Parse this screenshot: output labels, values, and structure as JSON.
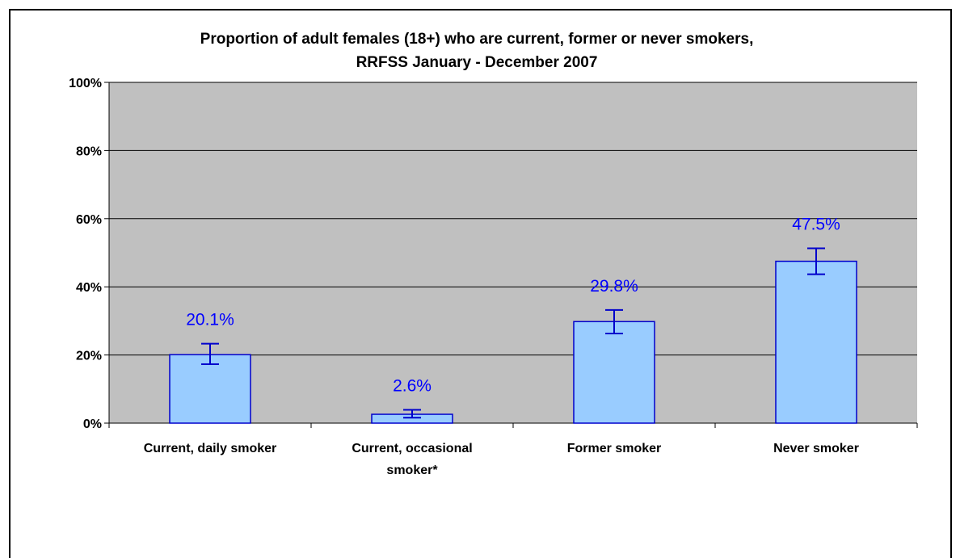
{
  "chart_data": {
    "type": "bar",
    "title_lines": [
      "Proportion of adult females (18+) who are current, former or never smokers,",
      "RRFSS January - December 2007"
    ],
    "categories": [
      [
        "Current, daily smoker"
      ],
      [
        "Current, occasional",
        "smoker*"
      ],
      [
        "Former smoker"
      ],
      [
        "Never smoker"
      ]
    ],
    "values": [
      20.1,
      2.6,
      29.8,
      47.5
    ],
    "data_labels": [
      "20.1%",
      "2.6%",
      "29.8%",
      "47.5%"
    ],
    "error_bars": [
      [
        17.3,
        23.3
      ],
      [
        1.6,
        3.9
      ],
      [
        26.3,
        33.2
      ],
      [
        43.7,
        51.3
      ]
    ],
    "ylim": [
      0,
      100
    ],
    "yticks": [
      0,
      20,
      40,
      60,
      80,
      100
    ],
    "ytick_labels": [
      "0%",
      "20%",
      "40%",
      "60%",
      "80%",
      "100%"
    ],
    "grid": true,
    "colors": {
      "plot_background": "#c0c0c0",
      "bar_fill": "#99ccff",
      "bar_stroke": "#0000cc",
      "error_bar": "#0000cc",
      "data_label": "#0000ff",
      "gridline": "#000000"
    }
  }
}
